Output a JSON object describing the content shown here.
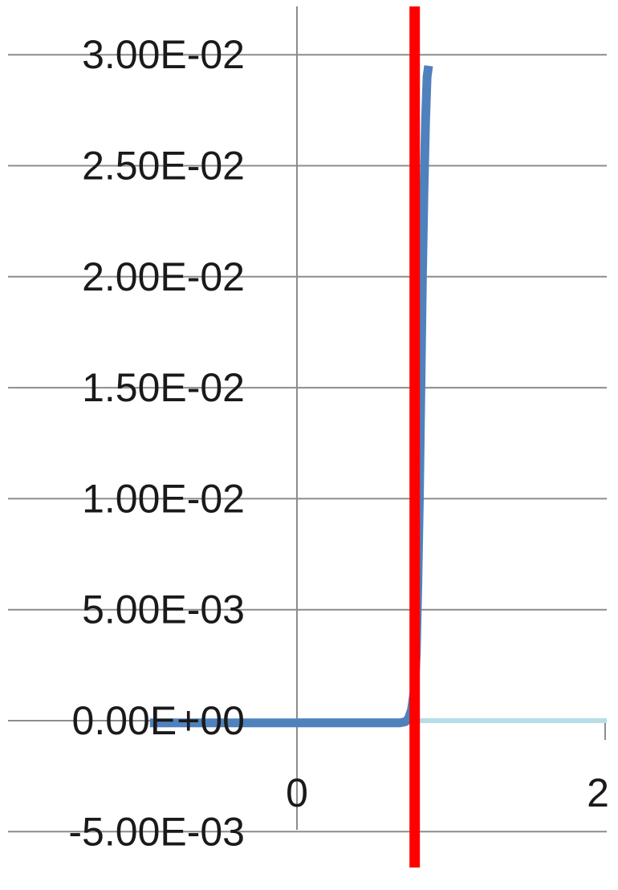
{
  "chart_data": {
    "type": "line",
    "title": "",
    "xlabel": "",
    "ylabel": "",
    "xlim": [
      -1.0,
      2.0
    ],
    "ylim": [
      -0.005,
      0.03
    ],
    "x_ticks": [
      {
        "value": 0,
        "label": "0"
      },
      {
        "value": 2,
        "label": "2"
      }
    ],
    "y_ticks": [
      {
        "value": 0.03,
        "label": "3.00E-02"
      },
      {
        "value": 0.025,
        "label": "2.50E-02"
      },
      {
        "value": 0.02,
        "label": "2.00E-02"
      },
      {
        "value": 0.015,
        "label": "1.50E-02"
      },
      {
        "value": 0.01,
        "label": "1.00E-02"
      },
      {
        "value": 0.005,
        "label": "5.00E-03"
      },
      {
        "value": 0.0,
        "label": "0.00E+00"
      },
      {
        "value": -0.005,
        "label": "-5.00E-03"
      }
    ],
    "grid": true,
    "series": [
      {
        "color": "#4f81bd",
        "x": [
          -0.95,
          -0.5,
          0.0,
          0.3,
          0.6,
          0.66,
          0.7,
          0.72,
          0.74,
          0.76,
          0.77,
          0.78,
          0.79,
          0.8,
          0.81,
          0.82,
          0.83,
          0.84,
          0.85
        ],
        "y": [
          -0.0001,
          -0.0001,
          -0.0001,
          -0.0001,
          -0.0001,
          -0.0001,
          -5e-05,
          0.0001,
          0.0005,
          0.0015,
          0.003,
          0.006,
          0.01,
          0.015,
          0.02,
          0.024,
          0.027,
          0.029,
          0.0295
        ]
      },
      {
        "color": "#b7dde8",
        "x": [
          0.0,
          0.4,
          0.8,
          1.2,
          1.6,
          2.0
        ],
        "y": [
          0.0,
          0.0,
          0.0,
          0.0,
          0.0,
          0.0
        ]
      }
    ],
    "vertical_marker": {
      "x": 0.76,
      "color": "#ff0000"
    }
  }
}
